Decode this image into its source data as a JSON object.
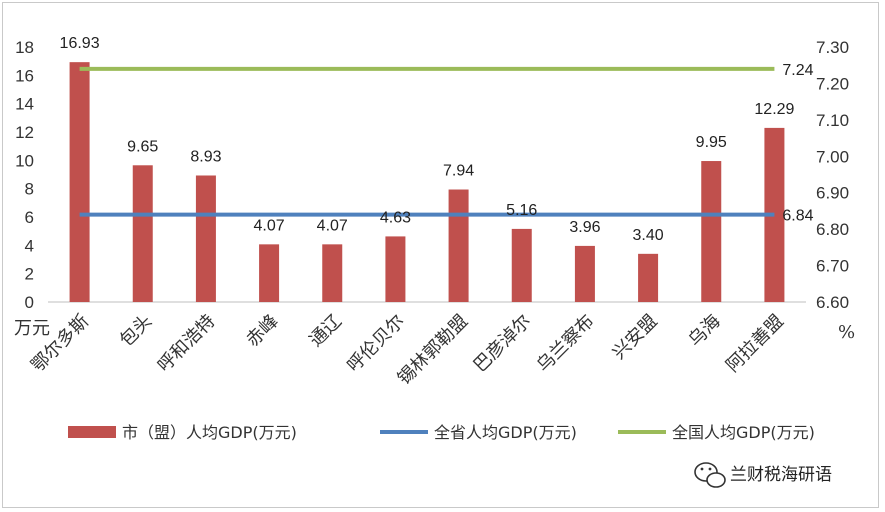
{
  "chart_data": {
    "type": "bar",
    "categories": [
      "鄂尔多斯",
      "包头",
      "呼和浩特",
      "赤峰",
      "通辽",
      "呼伦贝尔",
      "锡林郭勒盟",
      "巴彦淖尔",
      "乌兰察布",
      "兴安盟",
      "乌海",
      "阿拉善盟"
    ],
    "series": [
      {
        "name": "市（盟）人均GDP(万元)",
        "values": [
          16.93,
          9.65,
          8.93,
          4.07,
          4.07,
          4.63,
          7.94,
          5.16,
          3.96,
          3.4,
          9.95,
          12.29
        ],
        "color": "#c0504d",
        "axis": "left",
        "type": "bar"
      },
      {
        "name": "全省人均GDP(万元)",
        "values": [
          6.84,
          6.84,
          6.84,
          6.84,
          6.84,
          6.84,
          6.84,
          6.84,
          6.84,
          6.84,
          6.84,
          6.84
        ],
        "color": "#4f81bd",
        "axis": "right",
        "type": "line",
        "label": "6.84"
      },
      {
        "name": "全国人均GDP(万元)",
        "values": [
          7.24,
          7.24,
          7.24,
          7.24,
          7.24,
          7.24,
          7.24,
          7.24,
          7.24,
          7.24,
          7.24,
          7.24
        ],
        "color": "#9bbb59",
        "axis": "right",
        "type": "line",
        "label": "7.24"
      }
    ],
    "data_labels": [
      "16.93",
      "9.65",
      "8.93",
      "4.07",
      "4.07",
      "4.63",
      "7.94",
      "5.16",
      "3.96",
      "3.40",
      "9.95",
      "12.29"
    ],
    "ylim_left": [
      0,
      18
    ],
    "yticks_left": [
      "0",
      "2",
      "4",
      "6",
      "8",
      "10",
      "12",
      "14",
      "16",
      "18"
    ],
    "ylim_right": [
      6.6,
      7.3
    ],
    "yticks_right": [
      "6.60",
      "6.70",
      "6.80",
      "6.90",
      "7.00",
      "7.10",
      "7.20",
      "7.30"
    ],
    "ylabel_left": "万元",
    "ylabel_right": "%",
    "grid": false,
    "legend_position": "bottom"
  },
  "watermark": {
    "text": "兰财税海研语",
    "icon": "wechat-icon"
  }
}
